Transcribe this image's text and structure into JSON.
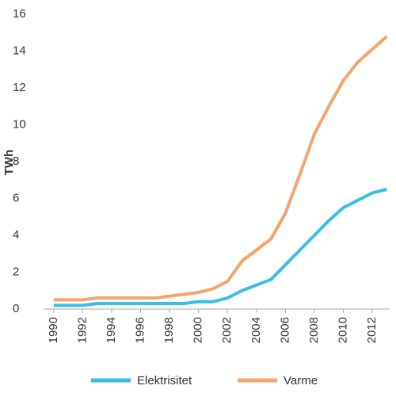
{
  "chart_data": {
    "type": "line",
    "ylabel": "TWh",
    "x": [
      1990,
      1991,
      1992,
      1993,
      1994,
      1995,
      1996,
      1997,
      1998,
      1999,
      2000,
      2001,
      2002,
      2003,
      2004,
      2005,
      2006,
      2007,
      2008,
      2009,
      2010,
      2011,
      2012,
      2013
    ],
    "series": [
      {
        "name": "Elektrisitet",
        "color": "#3bbde8",
        "values": [
          0.2,
          0.2,
          0.2,
          0.3,
          0.3,
          0.3,
          0.3,
          0.3,
          0.3,
          0.3,
          0.4,
          0.4,
          0.6,
          1.0,
          1.3,
          1.6,
          2.4,
          3.2,
          4.0,
          4.8,
          5.5,
          5.9,
          6.3,
          6.5
        ]
      },
      {
        "name": "Varme",
        "color": "#f4a46c",
        "values": [
          0.5,
          0.5,
          0.5,
          0.6,
          0.6,
          0.6,
          0.6,
          0.6,
          0.7,
          0.8,
          0.9,
          1.1,
          1.5,
          2.6,
          3.2,
          3.8,
          5.2,
          7.3,
          9.5,
          11.0,
          12.4,
          13.4,
          14.1,
          14.8
        ]
      }
    ],
    "xlim": [
      1989.3,
      2013.2
    ],
    "xticks": [
      1990,
      1992,
      1994,
      1996,
      1998,
      2000,
      2002,
      2004,
      2006,
      2008,
      2010,
      2012
    ],
    "ylim": [
      0,
      16
    ],
    "yticks": [
      0,
      2,
      4,
      6,
      8,
      10,
      12,
      14,
      16
    ],
    "grid": false,
    "legend": "bottom"
  }
}
